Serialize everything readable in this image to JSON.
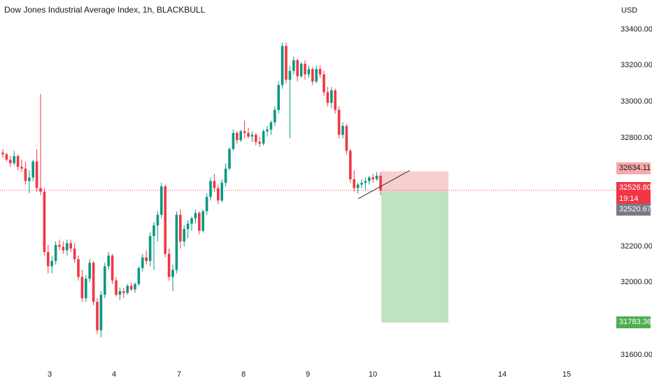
{
  "header": {
    "title": "Dow Jones Industrial Average Index, 1h, BLACKBULL",
    "currency": "USD"
  },
  "price_axis": {
    "labels": [
      "33400.00",
      "33200.00",
      "33000.00",
      "32800.00",
      "32200.00",
      "32000.00",
      "31600.00"
    ]
  },
  "time_axis": {
    "labels": [
      "3",
      "4",
      "7",
      "8",
      "9",
      "10",
      "11",
      "14",
      "15"
    ]
  },
  "tags": {
    "stop_loss": "32634.11",
    "last_price": "32526.80",
    "countdown": "19:14",
    "entry": "32520.67",
    "take_profit": "31783.36"
  },
  "colors": {
    "up": "#089981",
    "down": "#f23645",
    "stop_zone": "#f7cfcf",
    "target_zone": "#bfe3bf",
    "price_line": "#f23645"
  },
  "chart_data": {
    "type": "candlestick",
    "title": "Dow Jones Industrial Average Index, 1h, BLACKBULL",
    "ylim": [
      31550,
      33520
    ],
    "x_ticks": [
      "3",
      "4",
      "7",
      "8",
      "9",
      "10",
      "11",
      "14",
      "15"
    ],
    "series": [
      {
        "values": [
          [
            32740,
            32760,
            32710,
            32730
          ],
          [
            32730,
            32740,
            32690,
            32700
          ],
          [
            32700,
            32720,
            32660,
            32680
          ],
          [
            32680,
            32750,
            32670,
            32720
          ],
          [
            32720,
            32730,
            32640,
            32660
          ],
          [
            32660,
            32700,
            32630,
            32650
          ],
          [
            32650,
            32690,
            32560,
            32580
          ],
          [
            32580,
            32640,
            32510,
            32600
          ],
          [
            32600,
            32700,
            32580,
            32690
          ],
          [
            32690,
            32760,
            32520,
            32540
          ],
          [
            32540,
            33070,
            32500,
            32520
          ],
          [
            32520,
            32540,
            32160,
            32180
          ],
          [
            32180,
            32220,
            32060,
            32100
          ],
          [
            32100,
            32160,
            32060,
            32130
          ],
          [
            32130,
            32240,
            32110,
            32220
          ],
          [
            32220,
            32250,
            32190,
            32210
          ],
          [
            32210,
            32240,
            32170,
            32190
          ],
          [
            32190,
            32250,
            32160,
            32230
          ],
          [
            32230,
            32250,
            32180,
            32200
          ],
          [
            32200,
            32230,
            32120,
            32140
          ],
          [
            32140,
            32160,
            32020,
            32040
          ],
          [
            32040,
            32080,
            31900,
            31920
          ],
          [
            31920,
            32050,
            31900,
            32030
          ],
          [
            32030,
            32140,
            32010,
            32120
          ],
          [
            32120,
            32130,
            31880,
            31900
          ],
          [
            31900,
            31920,
            31720,
            31740
          ],
          [
            31740,
            31960,
            31700,
            31940
          ],
          [
            31940,
            32120,
            31920,
            32100
          ],
          [
            32100,
            32180,
            32080,
            32160
          ],
          [
            32160,
            32170,
            32000,
            32020
          ],
          [
            32020,
            32040,
            31930,
            31940
          ],
          [
            31940,
            31980,
            31910,
            31960
          ],
          [
            31960,
            31980,
            31920,
            31950
          ],
          [
            31950,
            32000,
            31940,
            31990
          ],
          [
            31990,
            32010,
            31960,
            31970
          ],
          [
            31970,
            32010,
            31950,
            32000
          ],
          [
            32000,
            32100,
            31990,
            32090
          ],
          [
            32090,
            32170,
            32070,
            32150
          ],
          [
            32150,
            32190,
            32110,
            32130
          ],
          [
            32130,
            32290,
            32100,
            32270
          ],
          [
            32270,
            32350,
            32080,
            32330
          ],
          [
            32330,
            32410,
            32240,
            32390
          ],
          [
            32390,
            32570,
            32370,
            32550
          ],
          [
            32550,
            32560,
            32150,
            32170
          ],
          [
            32170,
            32200,
            32020,
            32040
          ],
          [
            32040,
            32110,
            31960,
            32080
          ],
          [
            32080,
            32410,
            32060,
            32390
          ],
          [
            32390,
            32420,
            32200,
            32240
          ],
          [
            32240,
            32330,
            32210,
            32310
          ],
          [
            32310,
            32360,
            32260,
            32340
          ],
          [
            32340,
            32380,
            32300,
            32370
          ],
          [
            32370,
            32420,
            32340,
            32400
          ],
          [
            32400,
            32410,
            32280,
            32300
          ],
          [
            32300,
            32420,
            32290,
            32410
          ],
          [
            32410,
            32510,
            32390,
            32490
          ],
          [
            32490,
            32600,
            32470,
            32580
          ],
          [
            32580,
            32620,
            32520,
            32540
          ],
          [
            32540,
            32560,
            32450,
            32470
          ],
          [
            32470,
            32590,
            32460,
            32570
          ],
          [
            32570,
            32680,
            32550,
            32650
          ],
          [
            32650,
            32770,
            32640,
            32760
          ],
          [
            32760,
            32870,
            32750,
            32850
          ],
          [
            32850,
            32860,
            32790,
            32810
          ],
          [
            32810,
            32870,
            32800,
            32860
          ],
          [
            32860,
            32920,
            32820,
            32850
          ],
          [
            32850,
            32880,
            32820,
            32830
          ],
          [
            32830,
            32860,
            32800,
            32840
          ],
          [
            32840,
            32850,
            32780,
            32800
          ],
          [
            32800,
            32830,
            32770,
            32790
          ],
          [
            32790,
            32870,
            32780,
            32860
          ],
          [
            32860,
            32890,
            32830,
            32870
          ],
          [
            32870,
            32920,
            32840,
            32910
          ],
          [
            32910,
            33000,
            32890,
            32980
          ],
          [
            32980,
            33140,
            32960,
            33120
          ],
          [
            33120,
            33360,
            33100,
            33340
          ],
          [
            33340,
            33360,
            33130,
            33150
          ],
          [
            33150,
            33230,
            32820,
            33200
          ],
          [
            33200,
            33280,
            33180,
            33260
          ],
          [
            33260,
            33270,
            33140,
            33170
          ],
          [
            33170,
            33250,
            33160,
            33240
          ],
          [
            33240,
            33260,
            33150,
            33180
          ],
          [
            33180,
            33230,
            33160,
            33210
          ],
          [
            33210,
            33220,
            33120,
            33140
          ],
          [
            33140,
            33230,
            33130,
            33210
          ],
          [
            33210,
            33230,
            33160,
            33180
          ],
          [
            33180,
            33200,
            33060,
            33080
          ],
          [
            33080,
            33110,
            33000,
            33020
          ],
          [
            33020,
            33110,
            32990,
            33090
          ],
          [
            33090,
            33100,
            32960,
            32980
          ],
          [
            32980,
            33000,
            32820,
            32840
          ],
          [
            32840,
            32910,
            32820,
            32890
          ],
          [
            32890,
            32900,
            32730,
            32750
          ],
          [
            32750,
            32760,
            32570,
            32590
          ],
          [
            32590,
            32640,
            32520,
            32540
          ],
          [
            32540,
            32570,
            32510,
            32560
          ],
          [
            32560,
            32590,
            32540,
            32570
          ],
          [
            32570,
            32600,
            32530,
            32580
          ],
          [
            32580,
            32610,
            32560,
            32600
          ],
          [
            32600,
            32620,
            32570,
            32590
          ],
          [
            32590,
            32630,
            32580,
            32610
          ],
          [
            32610,
            32630,
            32500,
            32527
          ]
        ]
      }
    ],
    "position": {
      "entry": 32520.67,
      "stop": 32634.11,
      "target": 31783.36
    },
    "trendline": [
      [
        32480,
        0
      ],
      [
        32640,
        1
      ]
    ]
  }
}
